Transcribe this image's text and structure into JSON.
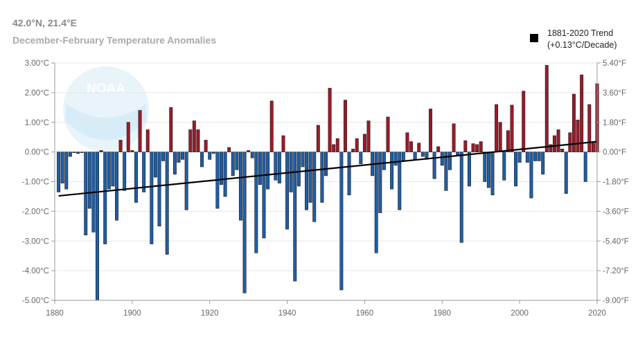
{
  "header": {
    "coordinates": "42.0°N, 21.4°E",
    "title": "December-February Temperature Anomalies"
  },
  "logo": {
    "text": "NOAA"
  },
  "legend": {
    "line1": "1881-2020 Trend",
    "line2": "(+0.13°C/Decade)"
  },
  "colors": {
    "positive": "#9b1b2a",
    "negative": "#1f5ea6",
    "trend": "#000000",
    "grid": "#e6e6e6"
  },
  "chart_data": {
    "type": "bar",
    "x": [
      1881,
      1882,
      1883,
      1884,
      1885,
      1886,
      1887,
      1888,
      1889,
      1890,
      1891,
      1892,
      1893,
      1894,
      1895,
      1896,
      1897,
      1898,
      1899,
      1900,
      1901,
      1902,
      1903,
      1904,
      1905,
      1906,
      1907,
      1908,
      1909,
      1910,
      1911,
      1912,
      1913,
      1914,
      1915,
      1916,
      1917,
      1918,
      1919,
      1920,
      1921,
      1922,
      1923,
      1924,
      1925,
      1926,
      1927,
      1928,
      1929,
      1930,
      1931,
      1932,
      1933,
      1934,
      1935,
      1936,
      1937,
      1938,
      1939,
      1940,
      1941,
      1942,
      1943,
      1944,
      1945,
      1946,
      1947,
      1948,
      1949,
      1950,
      1951,
      1952,
      1953,
      1954,
      1955,
      1956,
      1957,
      1958,
      1959,
      1960,
      1961,
      1962,
      1963,
      1964,
      1965,
      1966,
      1967,
      1968,
      1969,
      1970,
      1971,
      1972,
      1973,
      1974,
      1975,
      1976,
      1977,
      1978,
      1979,
      1980,
      1981,
      1982,
      1983,
      1984,
      1985,
      1986,
      1987,
      1988,
      1989,
      1990,
      1991,
      1992,
      1993,
      1994,
      1995,
      1996,
      1997,
      1998,
      1999,
      2000,
      2001,
      2002,
      2003,
      2004,
      2005,
      2006,
      2007,
      2008,
      2009,
      2010,
      2011,
      2012,
      2013,
      2014,
      2015,
      2016,
      2017,
      2018,
      2019,
      2020
    ],
    "series": [
      {
        "values": [
          -1.35,
          -1.05,
          -1.25,
          -0.15,
          0.0,
          -0.05,
          0.0,
          -2.8,
          -1.9,
          -2.7,
          -5.0,
          0.05,
          -3.1,
          -1.25,
          -1.15,
          -2.3,
          0.4,
          -1.3,
          1.0,
          0.05,
          -1.7,
          1.4,
          -1.35,
          0.75,
          -3.1,
          -0.85,
          -2.5,
          -0.3,
          -3.45,
          1.5,
          -0.75,
          -0.35,
          -0.25,
          -1.95,
          0.75,
          1.05,
          0.75,
          -0.5,
          0.4,
          -0.25,
          -0.05,
          -1.9,
          -1.1,
          -1.5,
          0.15,
          -0.8,
          -0.6,
          -2.3,
          -4.75,
          0.05,
          -0.2,
          -3.4,
          -1.1,
          -2.9,
          -1.25,
          1.72,
          -0.95,
          -1.05,
          0.55,
          -2.6,
          -1.35,
          -4.35,
          -1.15,
          -0.5,
          -1.95,
          -1.7,
          -2.35,
          0.9,
          -1.7,
          -0.8,
          2.15,
          0.25,
          0.45,
          -4.65,
          1.75,
          -1.45,
          0.1,
          0.45,
          -0.4,
          0.6,
          1.05,
          -0.8,
          -3.4,
          -2.05,
          -0.6,
          1.18,
          -1.25,
          -0.45,
          -1.95,
          -0.3,
          0.65,
          0.35,
          -0.25,
          0.3,
          -0.15,
          -0.25,
          1.45,
          -0.9,
          0.18,
          -0.45,
          -1.3,
          -0.6,
          0.95,
          -0.1,
          -3.05,
          0.38,
          -1.15,
          0.28,
          0.25,
          0.35,
          -1.0,
          -1.2,
          -1.45,
          1.6,
          1.0,
          -0.95,
          0.72,
          1.58,
          -1.15,
          -0.35,
          2.05,
          -0.35,
          -1.55,
          -0.3,
          -0.3,
          -0.75,
          2.92,
          0.25,
          0.55,
          0.75,
          0.1,
          -1.4,
          0.65,
          1.95,
          1.08,
          2.6,
          -1.0,
          1.6,
          0.3,
          2.3
        ]
      }
    ],
    "trend": {
      "start_year": 1881,
      "start_value": -1.48,
      "end_year": 2020,
      "end_value": 0.35
    },
    "y_ticks_left": [
      "3.00°C",
      "2.00°C",
      "1.00°C",
      "0.00°C",
      "-1.00°C",
      "-2.00°C",
      "-3.00°C",
      "-4.00°C",
      "-5.00°C"
    ],
    "y_ticks_right": [
      "5.40°F",
      "3.60°F",
      "1.80°F",
      "0.00°F",
      "-1.80°F",
      "-3.60°F",
      "-5.40°F",
      "-7.20°F",
      "-9.00°F"
    ],
    "x_ticks": [
      "1880",
      "1900",
      "1920",
      "1940",
      "1960",
      "1980",
      "2000",
      "2020"
    ],
    "xlim": [
      1880,
      2020
    ],
    "ylim": [
      -5,
      3
    ],
    "grid": true
  }
}
